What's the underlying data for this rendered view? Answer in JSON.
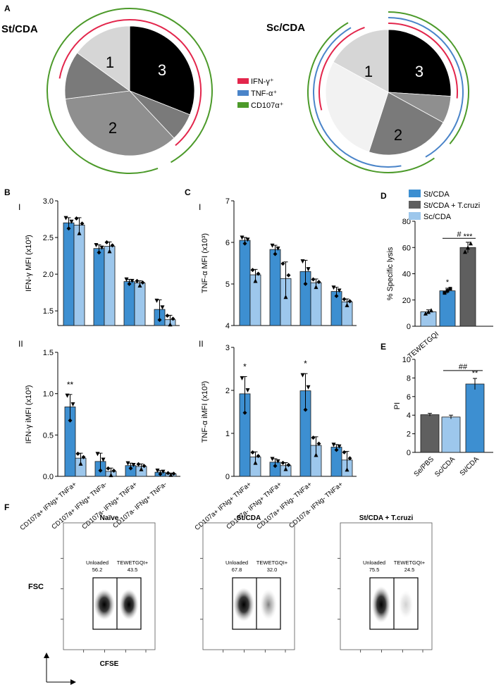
{
  "colors": {
    "st_cda": "#3d8fd1",
    "st_cda_tcruzi": "#5f5f5f",
    "sc_cda": "#9dc7ec",
    "ifn": "#e3264c",
    "tnf": "#4a84c9",
    "cd107": "#4c9a2a",
    "pie_black": "#000000",
    "pie_dark": "#7a7a7a",
    "pie_mid": "#8f8f8f",
    "pie_light": "#d6d6d6",
    "pie_white": "#f2f2f2"
  },
  "panel_letters": {
    "a": "A",
    "b": "B",
    "c": "C",
    "d": "D",
    "e": "E",
    "f": "F"
  },
  "roman": {
    "one": "I",
    "two": "II"
  },
  "legend_main": [
    "IFN-γ⁺",
    "TNF-α⁺",
    "CD107α⁺"
  ],
  "chart_data": [
    {
      "id": "A-left",
      "type": "pie",
      "title": "St/CDA",
      "slice_labels": [
        "3",
        "",
        "2",
        "",
        "1"
      ],
      "values": [
        31,
        7,
        35,
        12,
        15
      ],
      "note": "slice order clockwise from top: black(3), dark grey, mid grey(2), dark grey, light grey(1)"
    },
    {
      "id": "A-right",
      "type": "pie",
      "title": "Sc/CDA",
      "slice_labels": [
        "3",
        "",
        "2",
        "",
        "1"
      ],
      "values": [
        26,
        7,
        22,
        28,
        17
      ],
      "note": "slice order clockwise from top: black(3), mid grey, grey(2), white, light grey(1)"
    },
    {
      "id": "B-I",
      "type": "bar",
      "ylabel": "IFN-γ MFI (x10³)",
      "ylim": [
        1.3,
        3.0
      ],
      "yticks": [
        "1.5",
        "2.0",
        "2.5",
        "3.0"
      ],
      "series": [
        {
          "name": "St/CDA",
          "values": [
            2.7,
            2.35,
            1.9,
            1.52
          ],
          "err": [
            0.07,
            0.05,
            0.03,
            0.13
          ]
        },
        {
          "name": "Sc/CDA",
          "values": [
            2.67,
            2.38,
            1.88,
            1.38
          ],
          "err": [
            0.1,
            0.06,
            0.03,
            0.06
          ]
        }
      ]
    },
    {
      "id": "B-II",
      "type": "bar",
      "ylabel": "IFN-γ iMFI (x10³)",
      "ylim": [
        0,
        1.5
      ],
      "yticks": [
        "0.0",
        "0.5",
        "1.0",
        "1.5"
      ],
      "categories": [
        "CD107a+ IFNg+ TNFa+",
        "CD107a+ IFNg+ TNFa-",
        "CD107a- IFNg+ TNFa+",
        "CD107a- IFNg+ TNFa-"
      ],
      "significance": [
        "**",
        "",
        "",
        ""
      ],
      "series": [
        {
          "name": "St/CDA",
          "values": [
            0.84,
            0.18,
            0.13,
            0.05
          ],
          "err": [
            0.15,
            0.1,
            0.03,
            0.02
          ]
        },
        {
          "name": "Sc/CDA",
          "values": [
            0.22,
            0.06,
            0.12,
            0.03
          ],
          "err": [
            0.06,
            0.04,
            0.03,
            0.01
          ]
        }
      ]
    },
    {
      "id": "C-I",
      "type": "bar",
      "ylabel": "TNF-α MFI (x10³)",
      "ylim": [
        4,
        7
      ],
      "yticks": [
        "4",
        "5",
        "6",
        "7"
      ],
      "series": [
        {
          "name": "St/CDA",
          "values": [
            6.05,
            5.83,
            5.3,
            4.82
          ],
          "err": [
            0.07,
            0.1,
            0.27,
            0.1
          ]
        },
        {
          "name": "Sc/CDA",
          "values": [
            5.22,
            5.13,
            5.03,
            4.57
          ],
          "err": [
            0.13,
            0.4,
            0.09,
            0.07
          ]
        }
      ]
    },
    {
      "id": "C-II",
      "type": "bar",
      "ylabel": "TNF-α iMFI (x10³)",
      "ylim": [
        0,
        3
      ],
      "yticks": [
        "0",
        "1",
        "2",
        "3"
      ],
      "categories": [
        "CD107a+ IFNg+ TNFa+",
        "CD107a- IFNg+ TNFa+",
        "CD107a+ IFNg- TNFa+",
        "CD107a- IFNg- TNFa+"
      ],
      "significance": [
        "*",
        "",
        "*",
        ""
      ],
      "series": [
        {
          "name": "St/CDA",
          "values": [
            1.92,
            0.33,
            1.99,
            0.68
          ],
          "err": [
            0.4,
            0.08,
            0.4,
            0.06
          ]
        },
        {
          "name": "Sc/CDA",
          "values": [
            0.45,
            0.25,
            0.72,
            0.38
          ],
          "err": [
            0.12,
            0.07,
            0.2,
            0.2
          ]
        }
      ]
    },
    {
      "id": "D",
      "type": "bar",
      "ylabel": "% Specific lysis",
      "ylim": [
        0,
        80
      ],
      "yticks": [
        "0",
        "20",
        "40",
        "60",
        "80"
      ],
      "xlabel": "TEWETGQI",
      "legend": [
        "St/CDA",
        "St/CDA + T.cruzi",
        "Sc/CDA"
      ],
      "bars": [
        {
          "name": "Sc/CDA",
          "value": 11,
          "err": 1.5,
          "sig": ""
        },
        {
          "name": "St/CDA",
          "value": 27,
          "err": 2,
          "sig": "*"
        },
        {
          "name": "St/CDA + T.cruzi",
          "value": 60,
          "err": 4,
          "sig": "***"
        }
      ],
      "bracket": "#"
    },
    {
      "id": "E",
      "type": "bar",
      "ylabel": "PI",
      "ylim": [
        0,
        10
      ],
      "yticks": [
        "0",
        "2",
        "4",
        "6",
        "8",
        "10"
      ],
      "categories": [
        "Se/PBS",
        "Sc/CDA",
        "St/CDA"
      ],
      "values": [
        4.05,
        3.8,
        7.35
      ],
      "err": [
        0.15,
        0.2,
        0.6
      ],
      "significance": [
        "",
        "",
        "**"
      ],
      "bracket": "##"
    }
  ],
  "flow": {
    "titles": [
      "Naïve",
      "St/CDA",
      "St/CDA + T.cruzi"
    ],
    "unloaded_label": "Unloaded",
    "loaded_label": "TEWETGQI+",
    "unloaded_values": [
      "56.2",
      "67.8",
      "75.5"
    ],
    "loaded_values": [
      "43.5",
      "32.0",
      "24.5"
    ],
    "x_axis_label": "CFSE",
    "y_axis_label": "FSC"
  }
}
